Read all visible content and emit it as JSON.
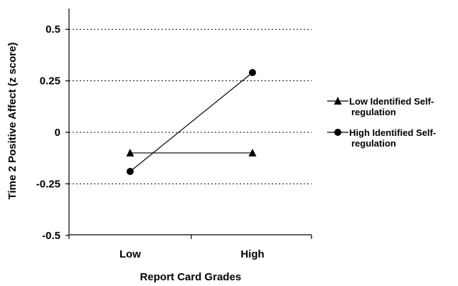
{
  "chart_data": {
    "type": "line",
    "categories": [
      "Low",
      "High"
    ],
    "series": [
      {
        "name": "Low Identified Self-regulation",
        "legend_lines": [
          "Low Identified Self-",
          "regulation"
        ],
        "marker": "triangle",
        "values": [
          -0.1,
          -0.1
        ]
      },
      {
        "name": "High Identified Self-regulation",
        "legend_lines": [
          "High Identified Self-",
          "regulation"
        ],
        "marker": "circle",
        "values": [
          -0.19,
          0.29
        ]
      }
    ],
    "yticks": [
      0.5,
      0.25,
      0,
      -0.25,
      -0.5
    ],
    "ytick_labels": [
      "0.5",
      "0.25",
      "0",
      "-0.25",
      "-0.5"
    ],
    "ylim": [
      -0.5,
      0.6
    ],
    "xlabel": "Report Card Grades",
    "ylabel": "Time 2 Positive Affect (z score)",
    "title": "",
    "grid": "horizontal dotted at y ticks above -0.5",
    "legend_position": "right"
  }
}
